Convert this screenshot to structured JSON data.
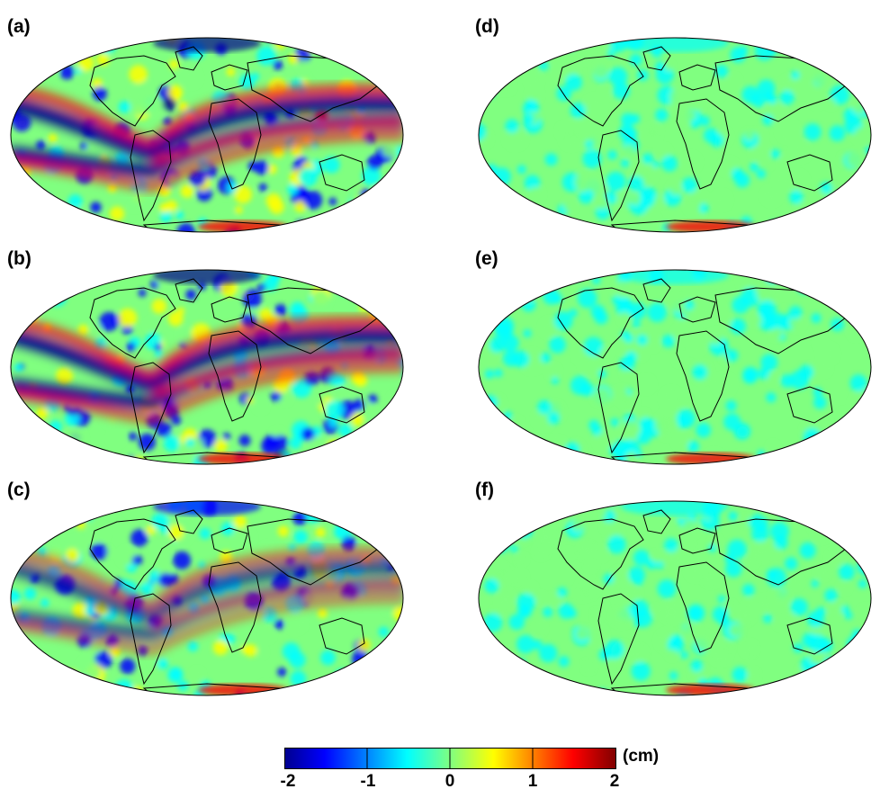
{
  "panels": [
    {
      "id": "a",
      "label": "(a)",
      "amplitude": "strong"
    },
    {
      "id": "b",
      "label": "(b)",
      "amplitude": "strong"
    },
    {
      "id": "c",
      "label": "(c)",
      "amplitude": "medium"
    },
    {
      "id": "d",
      "label": "(d)",
      "amplitude": "weak"
    },
    {
      "id": "e",
      "label": "(e)",
      "amplitude": "weak"
    },
    {
      "id": "f",
      "label": "(f)",
      "amplitude": "weak"
    }
  ],
  "colorbar": {
    "unit": "(cm)",
    "ticks": [
      "-2",
      "-1",
      "0",
      "1",
      "2"
    ],
    "range": [
      -2,
      2
    ],
    "colormap": "jet",
    "colors": [
      "#00008f",
      "#0000ff",
      "#00ffff",
      "#80ff80",
      "#ffff00",
      "#ff0000",
      "#800000"
    ]
  },
  "projection": "Mollweide",
  "land_outline_color": "#000000"
}
